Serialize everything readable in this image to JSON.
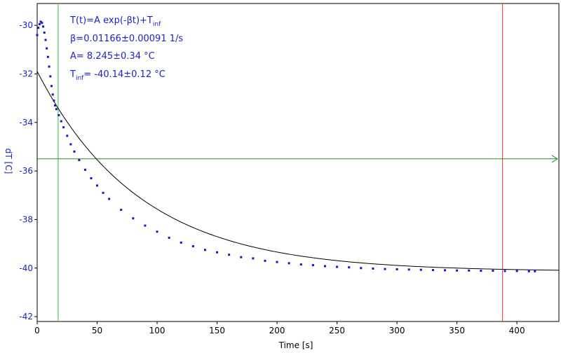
{
  "chart_data": {
    "type": "scatter",
    "title": "",
    "xlabel": "Time [s]",
    "ylabel": "dT [C]",
    "xlim": [
      0,
      435
    ],
    "ylim": [
      -42.2,
      -29.1
    ],
    "x_ticks": [
      0,
      50,
      100,
      150,
      200,
      250,
      300,
      350,
      400
    ],
    "y_ticks": [
      -42,
      -40,
      -38,
      -36,
      -34,
      -32,
      -30
    ],
    "grid": false,
    "annotations": {
      "formula": "T(t)=A exp(-βt)+T",
      "formula_sub": "inf",
      "beta": "β=0.01166±0.00091 1/s",
      "amplitude": "A= 8.245±0.34 °C",
      "tinf_prefix": "T",
      "tinf_sub": "inf",
      "tinf_value": "= -40.14±0.12 °C"
    },
    "fit": {
      "model": "T(t)=A exp(-βt)+T_inf",
      "A": 8.245,
      "beta": 0.01166,
      "T_inf": -40.14,
      "x_range": [
        0,
        435
      ]
    },
    "markers": {
      "vertical_green_x": 17.5,
      "vertical_red_x": 388,
      "horizontal_green_y": -35.5
    },
    "series": [
      {
        "x": [
          0,
          1,
          2,
          3,
          4,
          5,
          6,
          7,
          8,
          9,
          10,
          11,
          12,
          13,
          14,
          15,
          16,
          18,
          20,
          22,
          25,
          28,
          31,
          35,
          40,
          45,
          50,
          55,
          60,
          70,
          80,
          90,
          100,
          110,
          120,
          130,
          140,
          150,
          160,
          170,
          180,
          190,
          200,
          210,
          220,
          230,
          240,
          250,
          260,
          270,
          280,
          290,
          300,
          310,
          320,
          330,
          340,
          350,
          360,
          370,
          380,
          390,
          400,
          410,
          415
        ],
        "values": [
          -30.4,
          -30.1,
          -29.95,
          -29.85,
          -29.9,
          -30.05,
          -30.3,
          -30.6,
          -30.95,
          -31.3,
          -31.7,
          -32.1,
          -32.5,
          -32.85,
          -33.1,
          -33.3,
          -33.45,
          -33.7,
          -33.95,
          -34.2,
          -34.55,
          -34.9,
          -35.2,
          -35.55,
          -35.95,
          -36.3,
          -36.6,
          -36.9,
          -37.15,
          -37.6,
          -37.95,
          -38.25,
          -38.5,
          -38.75,
          -38.95,
          -39.1,
          -39.25,
          -39.35,
          -39.45,
          -39.55,
          -39.6,
          -39.7,
          -39.75,
          -39.8,
          -39.85,
          -39.88,
          -39.92,
          -39.95,
          -39.97,
          -40.0,
          -40.02,
          -40.04,
          -40.05,
          -40.06,
          -40.07,
          -40.08,
          -40.09,
          -40.1,
          -40.1,
          -40.11,
          -40.11,
          -40.12,
          -40.12,
          -40.13,
          -40.13
        ]
      }
    ]
  },
  "colors": {
    "data": "#1515c8",
    "fit": "#000000",
    "vertical_green": "#2ec42e",
    "vertical_red": "#e03030",
    "horizontal_green": "#2a8a2a",
    "tick_y": "#2020c0",
    "tick_x": "#000000",
    "ylabel": "#2020c0",
    "xlabel": "#000000"
  }
}
